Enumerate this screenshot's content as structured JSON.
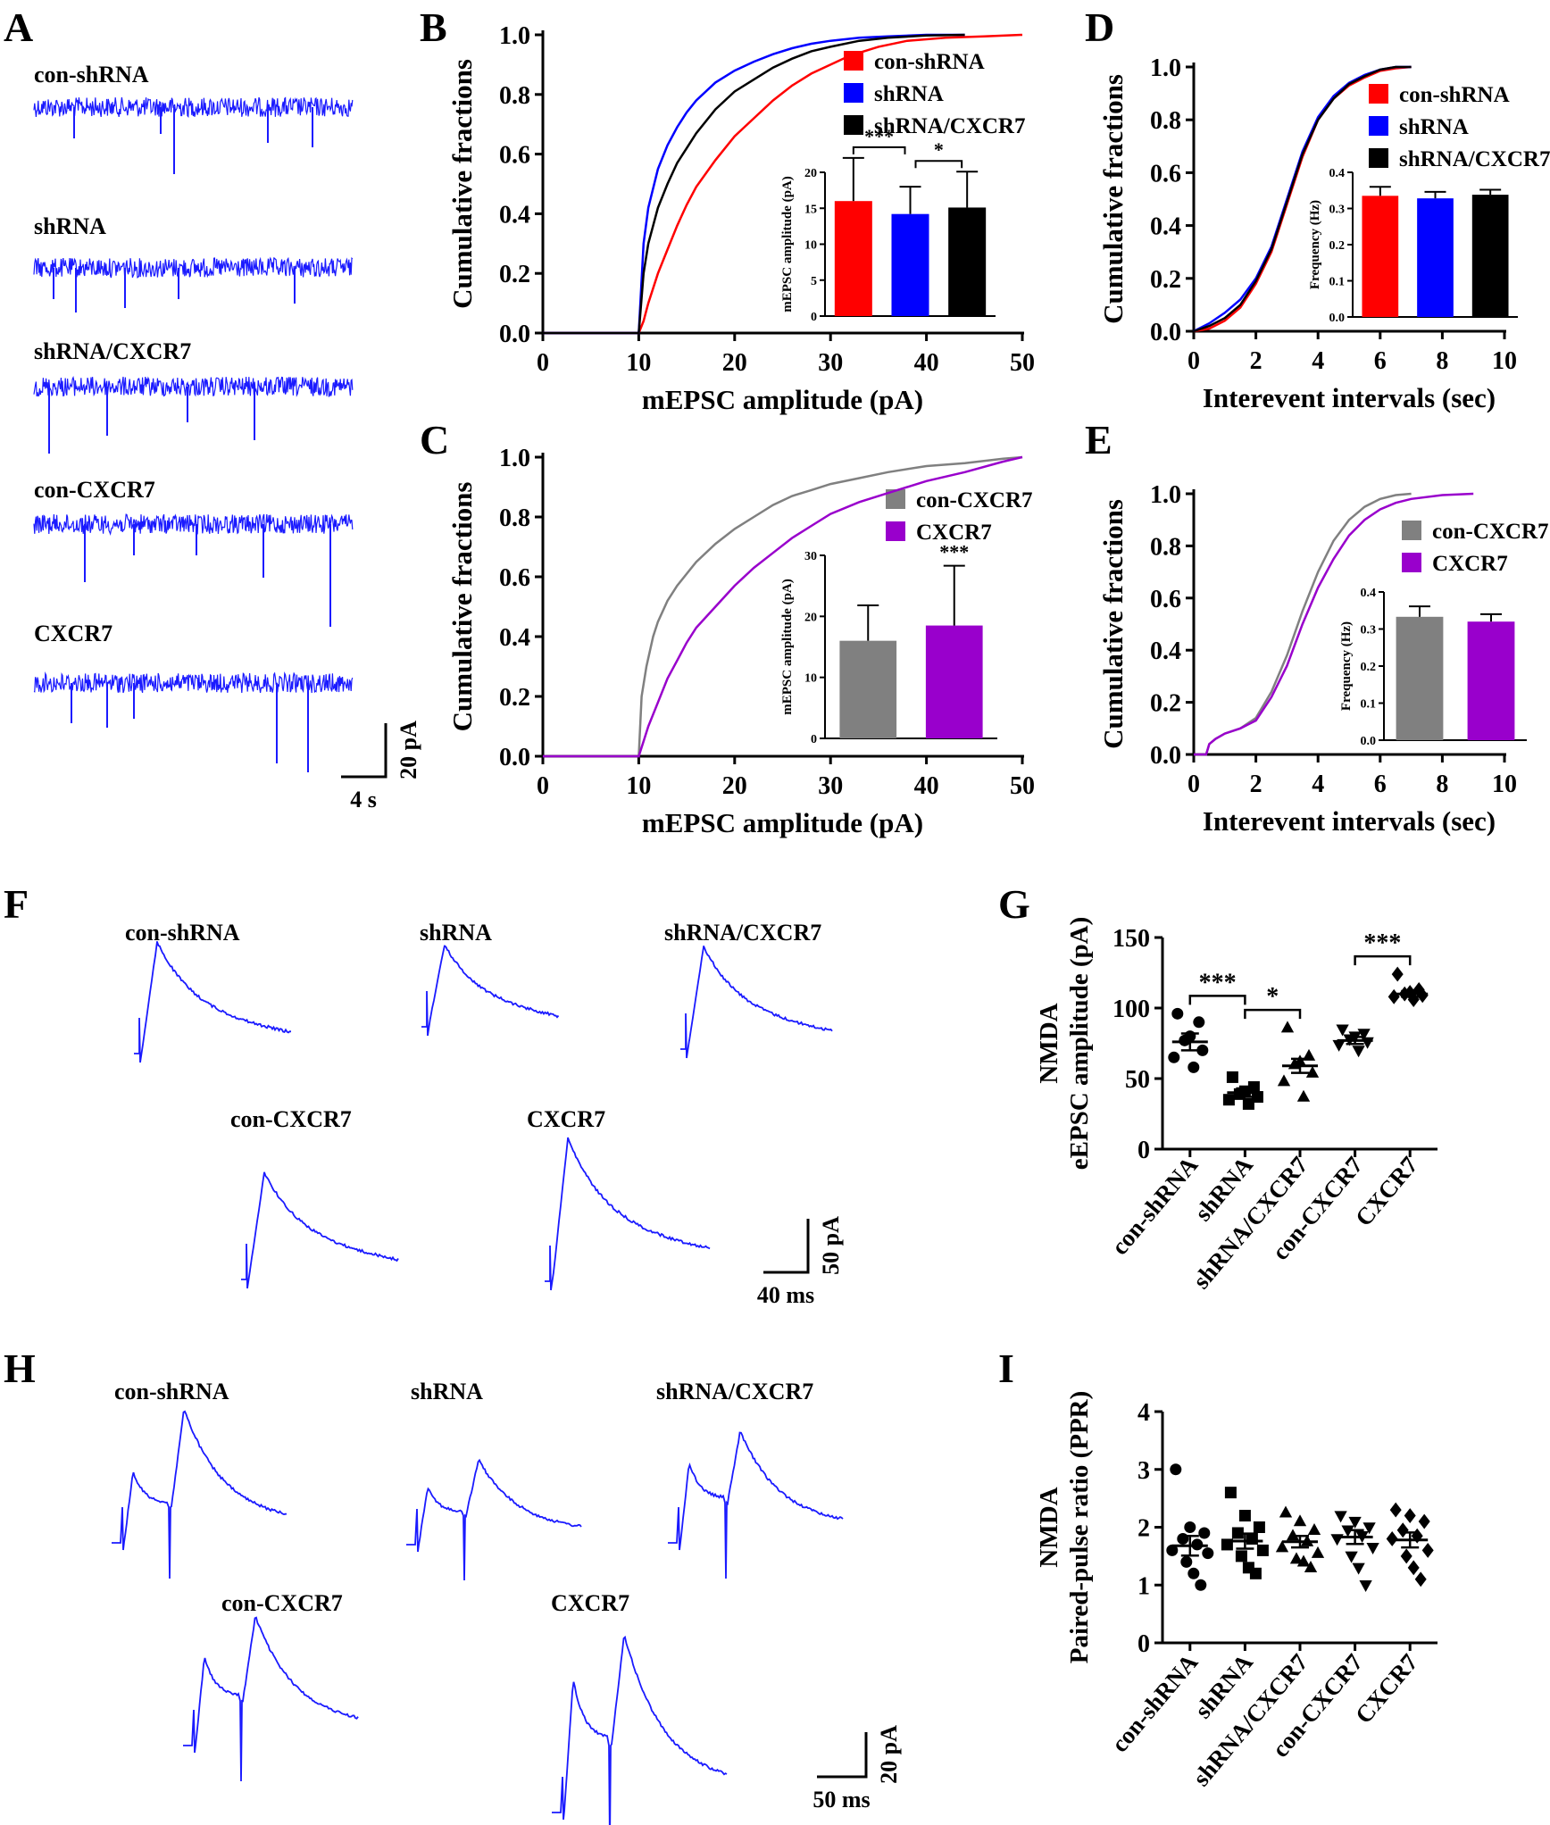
{
  "chart_data": [
    {
      "panel": "A",
      "type": "trace",
      "traces": [
        {
          "label": "con-shRNA",
          "color": "#1a1aff"
        },
        {
          "label": "shRNA",
          "color": "#1a1aff"
        },
        {
          "label": "shRNA/CXCR7",
          "color": "#1a1aff"
        },
        {
          "label": "con-CXCR7",
          "color": "#1a1aff"
        },
        {
          "label": "CXCR7",
          "color": "#1a1aff"
        }
      ],
      "scalebar": {
        "x_label": "4 s",
        "y_label": "20 pA"
      }
    },
    {
      "panel": "B",
      "type": "line",
      "subtype": "cumulative",
      "xlabel": "mEPSC amplitude (pA)",
      "ylabel": "Cumulative fractions",
      "xlim": [
        0,
        50
      ],
      "ylim": [
        0,
        1
      ],
      "xticks": [
        "0",
        "10",
        "20",
        "30",
        "40",
        "50"
      ],
      "yticks": [
        "0.0",
        "0.2",
        "0.4",
        "0.6",
        "0.8",
        "1.0"
      ],
      "series": [
        {
          "name": "con-shRNA",
          "color": "#ff0000",
          "x": [
            10,
            10.5,
            11,
            12,
            13,
            14,
            15,
            16,
            18,
            20,
            22,
            24,
            26,
            28,
            30,
            32,
            35,
            38,
            42,
            46,
            50
          ],
          "y": [
            0,
            0.04,
            0.1,
            0.2,
            0.28,
            0.36,
            0.43,
            0.49,
            0.58,
            0.66,
            0.72,
            0.78,
            0.83,
            0.87,
            0.9,
            0.93,
            0.96,
            0.98,
            0.99,
            0.995,
            1.0
          ]
        },
        {
          "name": "shRNA",
          "color": "#0000ff",
          "x": [
            10,
            10.5,
            11,
            12,
            13,
            14,
            15,
            16,
            18,
            20,
            22,
            24,
            26,
            28,
            30,
            33,
            36,
            40,
            44
          ],
          "y": [
            0,
            0.3,
            0.42,
            0.55,
            0.63,
            0.69,
            0.74,
            0.78,
            0.84,
            0.88,
            0.91,
            0.935,
            0.955,
            0.97,
            0.98,
            0.99,
            0.995,
            1.0,
            1.0
          ]
        },
        {
          "name": "shRNA/CXCR7",
          "color": "#000000",
          "x": [
            10,
            10.5,
            11,
            12,
            13,
            14,
            15,
            16,
            18,
            20,
            22,
            24,
            26,
            28,
            30,
            33,
            36,
            40,
            44
          ],
          "y": [
            0,
            0.2,
            0.3,
            0.42,
            0.5,
            0.57,
            0.62,
            0.67,
            0.75,
            0.81,
            0.85,
            0.89,
            0.92,
            0.945,
            0.96,
            0.98,
            0.99,
            0.998,
            1.0
          ]
        }
      ],
      "inset": {
        "type": "bar",
        "ylabel": "mEPSC amplitude (pA)",
        "ylim": [
          0,
          20
        ],
        "yticks": [
          "0",
          "5",
          "10",
          "15",
          "20"
        ],
        "bars": [
          {
            "name": "con-shRNA",
            "value": 16,
            "error": 6,
            "color": "#ff0000"
          },
          {
            "name": "shRNA",
            "value": 14.2,
            "error": 3.8,
            "color": "#0000ff"
          },
          {
            "name": "shRNA/CXCR7",
            "value": 15.1,
            "error": 5,
            "color": "#000000"
          }
        ],
        "significance": [
          {
            "pair": [
              0,
              1
            ],
            "label": "***"
          },
          {
            "pair": [
              1,
              2
            ],
            "label": "*"
          }
        ]
      }
    },
    {
      "panel": "C",
      "type": "line",
      "subtype": "cumulative",
      "xlabel": "mEPSC amplitude (pA)",
      "ylabel": "Cumulative fractions",
      "xlim": [
        0,
        50
      ],
      "ylim": [
        0,
        1
      ],
      "xticks": [
        "0",
        "10",
        "20",
        "30",
        "40",
        "50"
      ],
      "yticks": [
        "0.0",
        "0.2",
        "0.4",
        "0.6",
        "0.8",
        "1.0"
      ],
      "series": [
        {
          "name": "con-CXCR7",
          "color": "#808080",
          "x": [
            10,
            10.3,
            10.8,
            11.5,
            12,
            13,
            14,
            15,
            16,
            18,
            20,
            22,
            24,
            26,
            28,
            30,
            33,
            36,
            40,
            44,
            48,
            50
          ],
          "y": [
            0,
            0.2,
            0.3,
            0.4,
            0.45,
            0.52,
            0.57,
            0.61,
            0.65,
            0.71,
            0.76,
            0.8,
            0.84,
            0.87,
            0.89,
            0.91,
            0.93,
            0.95,
            0.97,
            0.98,
            0.995,
            1.0
          ]
        },
        {
          "name": "CXCR7",
          "color": "#9900cc",
          "x": [
            10,
            10.5,
            11,
            12,
            13,
            14,
            15,
            16,
            18,
            20,
            22,
            24,
            26,
            28,
            30,
            33,
            36,
            40,
            44,
            48,
            50
          ],
          "y": [
            0,
            0.05,
            0.1,
            0.18,
            0.26,
            0.32,
            0.38,
            0.43,
            0.5,
            0.57,
            0.63,
            0.68,
            0.73,
            0.77,
            0.81,
            0.85,
            0.88,
            0.92,
            0.95,
            0.985,
            1.0
          ]
        }
      ],
      "inset": {
        "type": "bar",
        "ylabel": "mEPSC amplitude (pA)",
        "ylim": [
          0,
          30
        ],
        "yticks": [
          "0",
          "10",
          "20",
          "30"
        ],
        "bars": [
          {
            "name": "con-CXCR7",
            "value": 16,
            "error": 5.8,
            "color": "#808080"
          },
          {
            "name": "CXCR7",
            "value": 18.5,
            "error": 9.8,
            "color": "#9900cc"
          }
        ],
        "significance": [
          {
            "pair": [
              1,
              1
            ],
            "label": "***"
          }
        ]
      }
    },
    {
      "panel": "D",
      "type": "line",
      "subtype": "cumulative",
      "xlabel": "Interevent intervals (sec)",
      "ylabel": "Cumulative fractions",
      "xlim": [
        0,
        10
      ],
      "ylim": [
        0,
        1
      ],
      "xticks": [
        "0",
        "2",
        "4",
        "6",
        "8",
        "10"
      ],
      "yticks": [
        "0.0",
        "0.2",
        "0.4",
        "0.6",
        "0.8",
        "1.0"
      ],
      "series": [
        {
          "name": "con-shRNA",
          "color": "#ff0000",
          "x": [
            0,
            0.5,
            1,
            1.5,
            2,
            2.5,
            3,
            3.5,
            4,
            4.5,
            5,
            5.5,
            6,
            6.5,
            7
          ],
          "y": [
            0,
            0.01,
            0.04,
            0.09,
            0.18,
            0.3,
            0.48,
            0.66,
            0.8,
            0.88,
            0.93,
            0.96,
            0.985,
            0.995,
            1.0
          ]
        },
        {
          "name": "shRNA",
          "color": "#0000ff",
          "x": [
            0,
            0.5,
            1,
            1.5,
            2,
            2.5,
            3,
            3.5,
            4,
            4.5,
            5,
            5.5,
            6,
            6.5,
            7
          ],
          "y": [
            0,
            0.03,
            0.07,
            0.12,
            0.2,
            0.32,
            0.5,
            0.68,
            0.81,
            0.89,
            0.94,
            0.97,
            0.99,
            1.0,
            1.0
          ]
        },
        {
          "name": "shRNA/CXCR7",
          "color": "#000000",
          "x": [
            0,
            0.5,
            1,
            1.5,
            2,
            2.5,
            3,
            3.5,
            4,
            4.5,
            5,
            5.5,
            6,
            6.5,
            7
          ],
          "y": [
            0,
            0.02,
            0.05,
            0.1,
            0.19,
            0.31,
            0.49,
            0.67,
            0.8,
            0.88,
            0.935,
            0.965,
            0.99,
            1.0,
            1.0
          ]
        }
      ],
      "inset": {
        "type": "bar",
        "ylabel": "Frequency (Hz)",
        "ylim": [
          0,
          0.4
        ],
        "yticks": [
          "0.0",
          "0.1",
          "0.2",
          "0.3",
          "0.4"
        ],
        "bars": [
          {
            "name": "con-shRNA",
            "value": 0.335,
            "error": 0.025,
            "color": "#ff0000"
          },
          {
            "name": "shRNA",
            "value": 0.328,
            "error": 0.018,
            "color": "#0000ff"
          },
          {
            "name": "shRNA/CXCR7",
            "value": 0.338,
            "error": 0.014,
            "color": "#000000"
          }
        ],
        "significance": []
      }
    },
    {
      "panel": "E",
      "type": "line",
      "subtype": "cumulative",
      "xlabel": "Interevent intervals (sec)",
      "ylabel": "Cumulative fractions",
      "xlim": [
        0,
        10
      ],
      "ylim": [
        0,
        1
      ],
      "xticks": [
        "0",
        "2",
        "4",
        "6",
        "8",
        "10"
      ],
      "yticks": [
        "0.0",
        "0.2",
        "0.4",
        "0.6",
        "0.8",
        "1.0"
      ],
      "series": [
        {
          "name": "con-CXCR7",
          "color": "#808080",
          "x": [
            0.4,
            0.5,
            0.7,
            1,
            1.5,
            2,
            2.5,
            3,
            3.5,
            4,
            4.5,
            5,
            5.5,
            6,
            6.5,
            7
          ],
          "y": [
            0,
            0.04,
            0.06,
            0.08,
            0.1,
            0.14,
            0.24,
            0.38,
            0.55,
            0.7,
            0.82,
            0.9,
            0.95,
            0.98,
            0.995,
            1.0
          ]
        },
        {
          "name": "CXCR7",
          "color": "#9900cc",
          "x": [
            0.4,
            0.5,
            0.7,
            1,
            1.5,
            2,
            2.5,
            3,
            3.5,
            4,
            4.5,
            5,
            5.5,
            6,
            6.5,
            7,
            8,
            9
          ],
          "y": [
            0,
            0.04,
            0.06,
            0.08,
            0.1,
            0.13,
            0.22,
            0.34,
            0.5,
            0.64,
            0.75,
            0.84,
            0.9,
            0.94,
            0.965,
            0.98,
            0.995,
            1.0
          ]
        }
      ],
      "inset": {
        "type": "bar",
        "ylabel": "Frequency (Hz)",
        "ylim": [
          0,
          0.4
        ],
        "yticks": [
          "0.0",
          "0.1",
          "0.2",
          "0.3",
          "0.4"
        ],
        "bars": [
          {
            "name": "con-CXCR7",
            "value": 0.333,
            "error": 0.028,
            "color": "#808080"
          },
          {
            "name": "CXCR7",
            "value": 0.32,
            "error": 0.02,
            "color": "#9900cc"
          }
        ],
        "significance": []
      }
    },
    {
      "panel": "F",
      "type": "trace",
      "traces": [
        {
          "label": "con-shRNA",
          "peak": 90
        },
        {
          "label": "shRNA",
          "peak": 60
        },
        {
          "label": "shRNA/CXCR7",
          "peak": 80
        },
        {
          "label": "con-CXCR7",
          "peak": 75
        },
        {
          "label": "CXCR7",
          "peak": 110
        }
      ],
      "scalebar": {
        "x_label": "40 ms",
        "y_label": "50 pA"
      }
    },
    {
      "panel": "G",
      "type": "scatter",
      "ylabel_lines": [
        "NMDA",
        "eEPSC amplitude (pA)"
      ],
      "ylim": [
        0,
        150
      ],
      "yticks": [
        "0",
        "50",
        "100",
        "150"
      ],
      "categories": [
        "con-shRNA",
        "shRNA",
        "shRNA/CXCR7",
        "con-CXCR7",
        "CXCR7"
      ],
      "markers": [
        "circle",
        "square",
        "triangle-up",
        "triangle-down",
        "diamond"
      ],
      "groups": [
        {
          "points": [
            96,
            90,
            80,
            77,
            70,
            65,
            58
          ],
          "mean": 76,
          "sem": 6
        },
        {
          "points": [
            51,
            44,
            41,
            39,
            37,
            35,
            32
          ],
          "mean": 40,
          "sem": 3
        },
        {
          "points": [
            86,
            66,
            62,
            60,
            54,
            48,
            37
          ],
          "mean": 59,
          "sem": 5
        },
        {
          "points": [
            85,
            82,
            80,
            78,
            76,
            74,
            70
          ],
          "mean": 77,
          "sem": 2.5
        },
        {
          "points": [
            124,
            113,
            111,
            110,
            109,
            108,
            106
          ],
          "mean": 110,
          "sem": 2
        }
      ],
      "significance": [
        {
          "pair": [
            0,
            1
          ],
          "label": "***"
        },
        {
          "pair": [
            1,
            2
          ],
          "label": "*"
        },
        {
          "pair": [
            3,
            4
          ],
          "label": "***"
        }
      ]
    },
    {
      "panel": "H",
      "type": "trace",
      "traces": [
        {
          "label": "con-shRNA"
        },
        {
          "label": "shRNA"
        },
        {
          "label": "shRNA/CXCR7"
        },
        {
          "label": "con-CXCR7"
        },
        {
          "label": "CXCR7"
        }
      ],
      "scalebar": {
        "x_label": "50 ms",
        "y_label": "20 pA"
      }
    },
    {
      "panel": "I",
      "type": "scatter",
      "ylabel_lines": [
        "NMDA",
        "Paired-pulse ratio (PPR)"
      ],
      "ylim": [
        0,
        4
      ],
      "yticks": [
        "0",
        "1",
        "2",
        "3",
        "4"
      ],
      "categories": [
        "con-shRNA",
        "shRNA",
        "shRNA/CXCR7",
        "con-CXCR7",
        "CXCR7"
      ],
      "markers": [
        "circle",
        "square",
        "triangle-up",
        "triangle-down",
        "diamond"
      ],
      "groups": [
        {
          "points": [
            3.0,
            2.0,
            1.9,
            1.8,
            1.7,
            1.6,
            1.55,
            1.4,
            1.2,
            1.0
          ],
          "mean": 1.68,
          "sem": 0.17
        },
        {
          "points": [
            2.6,
            2.2,
            2.0,
            1.9,
            1.8,
            1.7,
            1.6,
            1.5,
            1.3,
            1.2
          ],
          "mean": 1.76,
          "sem": 0.13
        },
        {
          "points": [
            2.25,
            2.1,
            1.95,
            1.85,
            1.75,
            1.65,
            1.55,
            1.45,
            1.4,
            1.3
          ],
          "mean": 1.75,
          "sem": 0.1
        },
        {
          "points": [
            2.2,
            2.1,
            2.0,
            1.95,
            1.85,
            1.8,
            1.65,
            1.5,
            1.3,
            1.0
          ],
          "mean": 1.83,
          "sem": 0.12
        },
        {
          "points": [
            2.3,
            2.2,
            2.1,
            1.95,
            1.85,
            1.8,
            1.6,
            1.5,
            1.3,
            1.1
          ],
          "mean": 1.78,
          "sem": 0.13
        }
      ],
      "significance": []
    }
  ]
}
